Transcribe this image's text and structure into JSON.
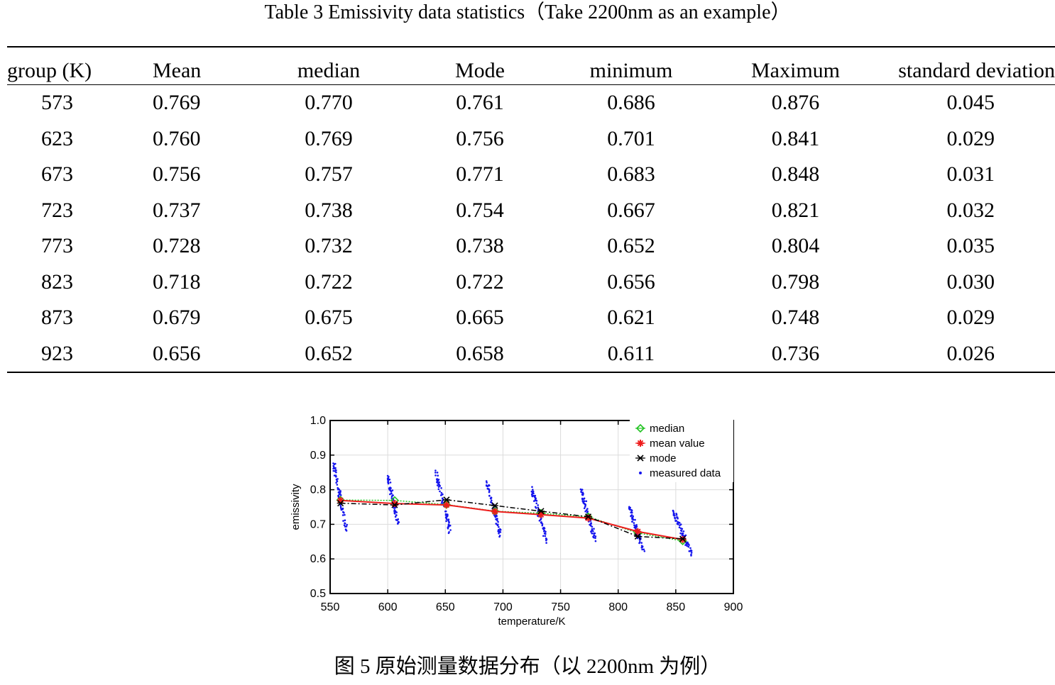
{
  "table": {
    "title": "Table 3 Emissivity data statistics（Take 2200nm as an example）",
    "headers": [
      "group (K)",
      "Mean",
      "median",
      "Mode",
      "minimum",
      "Maximum",
      "standard deviation"
    ],
    "rows": [
      [
        "573",
        "0.769",
        "0.770",
        "0.761",
        "0.686",
        "0.876",
        "0.045"
      ],
      [
        "623",
        "0.760",
        "0.769",
        "0.756",
        "0.701",
        "0.841",
        "0.029"
      ],
      [
        "673",
        "0.756",
        "0.757",
        "0.771",
        "0.683",
        "0.848",
        "0.031"
      ],
      [
        "723",
        "0.737",
        "0.738",
        "0.754",
        "0.667",
        "0.821",
        "0.032"
      ],
      [
        "773",
        "0.728",
        "0.732",
        "0.738",
        "0.652",
        "0.804",
        "0.035"
      ],
      [
        "823",
        "0.718",
        "0.722",
        "0.722",
        "0.656",
        "0.798",
        "0.030"
      ],
      [
        "873",
        "0.679",
        "0.675",
        "0.665",
        "0.621",
        "0.748",
        "0.029"
      ],
      [
        "923",
        "0.656",
        "0.652",
        "0.658",
        "0.611",
        "0.736",
        "0.026"
      ]
    ]
  },
  "figure": {
    "caption": "图 5  原始测量数据分布（以 2200nm 为例）"
  },
  "chart_data": {
    "type": "line",
    "xlabel": "temperature/K",
    "ylabel": "emissivity",
    "xlim": [
      550,
      900
    ],
    "ylim": [
      0.5,
      1.0
    ],
    "xticks": [
      "550",
      "600",
      "650",
      "700",
      "750",
      "800",
      "850",
      "900"
    ],
    "yticks": [
      "0.5",
      "0.6",
      "0.7",
      "0.8",
      "0.9",
      "1.0"
    ],
    "grid": true,
    "legend_position": "top-right",
    "x": [
      559,
      606,
      651,
      693,
      733,
      774,
      817,
      856
    ],
    "series": [
      {
        "name": "median",
        "color": "#22c322",
        "marker": "diamond",
        "values": [
          0.77,
          0.769,
          0.757,
          0.738,
          0.732,
          0.722,
          0.675,
          0.652
        ]
      },
      {
        "name": "mean value",
        "color": "#ee1c1c",
        "marker": "star",
        "values": [
          0.769,
          0.76,
          0.756,
          0.737,
          0.728,
          0.718,
          0.679,
          0.656
        ]
      },
      {
        "name": "mode",
        "color": "#000000",
        "marker": "x",
        "values": [
          0.761,
          0.756,
          0.771,
          0.754,
          0.738,
          0.722,
          0.665,
          0.658
        ]
      },
      {
        "name": "measured data",
        "color": "#1515ee",
        "marker": "dot",
        "clusters": [
          {
            "x_start": 553,
            "x_end": 564,
            "y_start": 0.876,
            "y_end": 0.686
          },
          {
            "x_start": 600,
            "x_end": 609,
            "y_start": 0.841,
            "y_end": 0.701
          },
          {
            "x_start": 642,
            "x_end": 654,
            "y_start": 0.848,
            "y_end": 0.683
          },
          {
            "x_start": 686,
            "x_end": 698,
            "y_start": 0.821,
            "y_end": 0.667
          },
          {
            "x_start": 725,
            "x_end": 738,
            "y_start": 0.804,
            "y_end": 0.652
          },
          {
            "x_start": 768,
            "x_end": 780,
            "y_start": 0.798,
            "y_end": 0.656
          },
          {
            "x_start": 810,
            "x_end": 822,
            "y_start": 0.748,
            "y_end": 0.621
          },
          {
            "x_start": 848,
            "x_end": 864,
            "y_start": 0.736,
            "y_end": 0.611
          }
        ]
      }
    ]
  }
}
